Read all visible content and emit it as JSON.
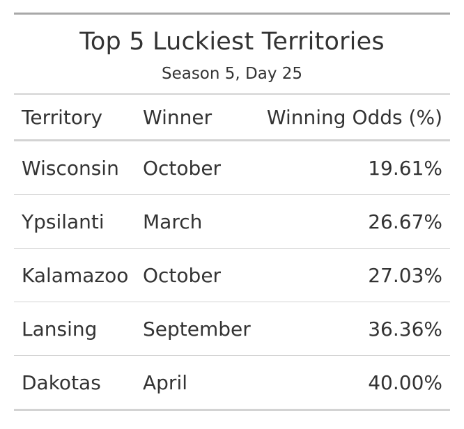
{
  "chart_data": {
    "type": "table",
    "title": "Top 5 Luckiest Territories",
    "subtitle": "Season 5, Day 25",
    "columns": [
      "Territory",
      "Winner",
      "Winning Odds (%)"
    ],
    "rows": [
      {
        "territory": "Wisconsin",
        "winner": "October",
        "odds": "19.61%"
      },
      {
        "territory": "Ypsilanti",
        "winner": "March",
        "odds": "26.67%"
      },
      {
        "territory": "Kalamazoo",
        "winner": "October",
        "odds": "27.03%"
      },
      {
        "territory": "Lansing",
        "winner": "September",
        "odds": "36.36%"
      },
      {
        "territory": "Dakotas",
        "winner": "April",
        "odds": "40.00%"
      }
    ]
  }
}
